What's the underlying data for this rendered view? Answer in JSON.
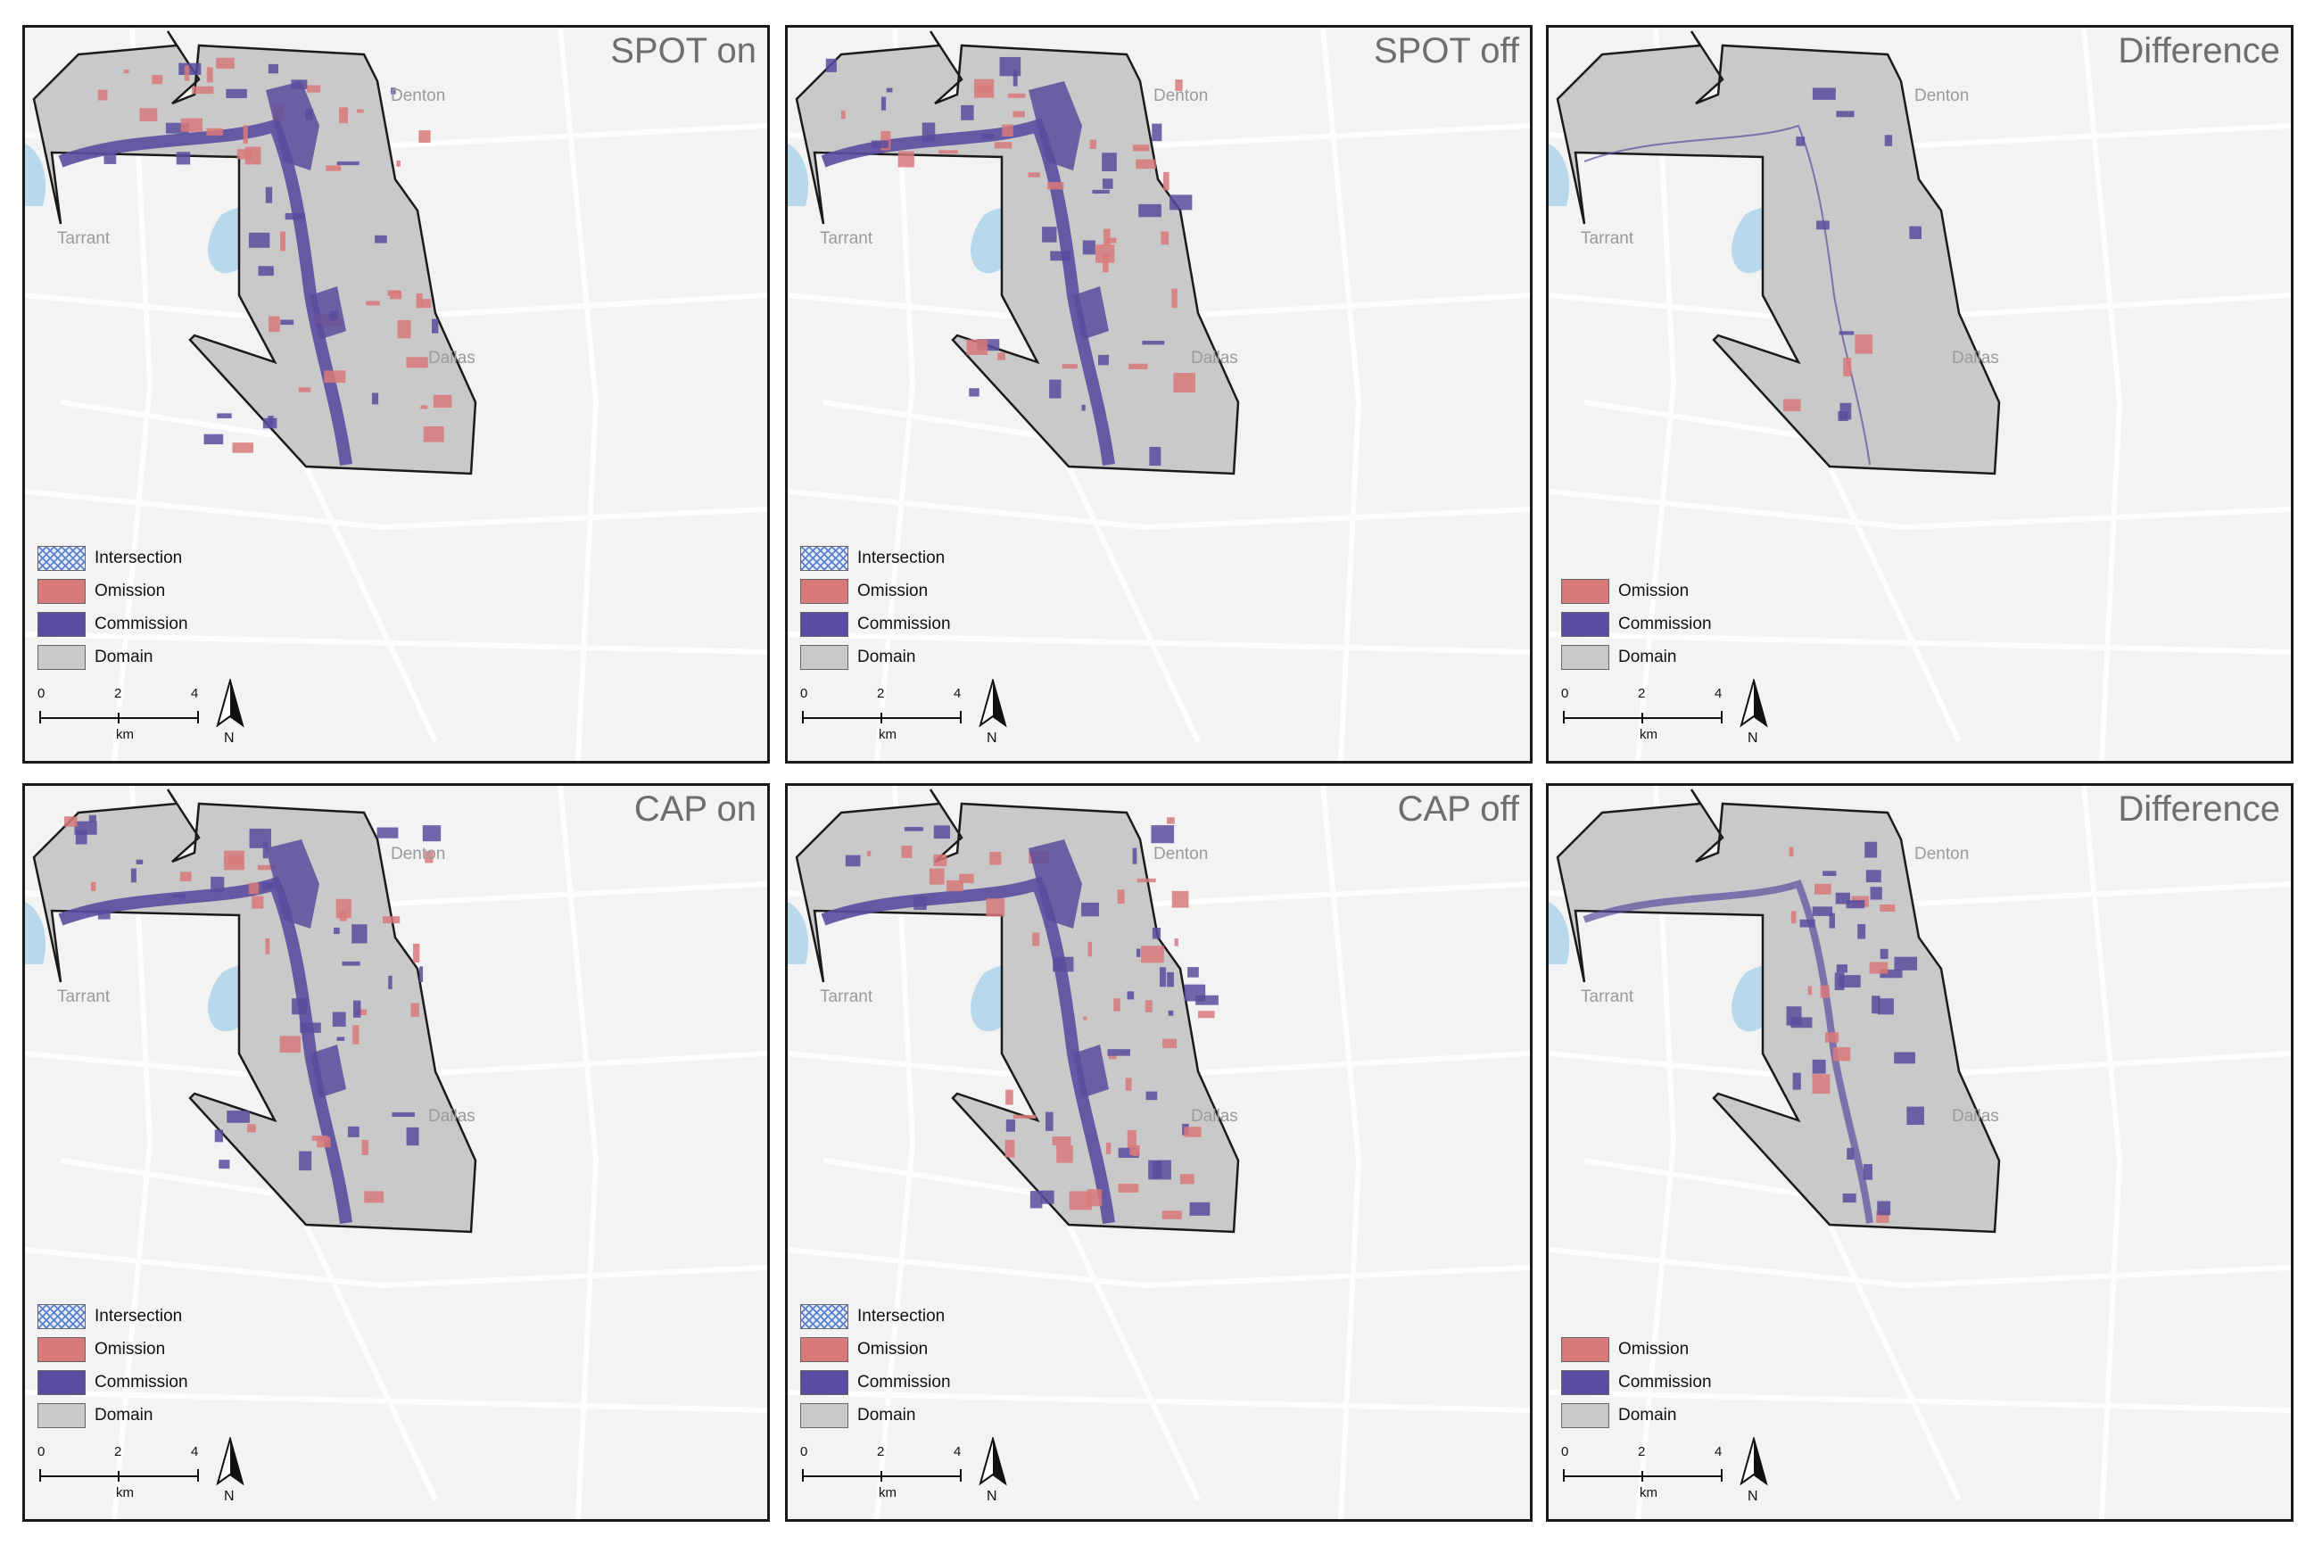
{
  "legend": {
    "intersection": "Intersection",
    "omission": "Omission",
    "commission": "Commission",
    "domain": "Domain"
  },
  "places": {
    "denton": "Denton",
    "tarrant": "Tarrant",
    "dallas": "Dallas"
  },
  "scale": {
    "t0": "0",
    "t2": "2",
    "t4": "4",
    "unit": "km"
  },
  "north_label": "N",
  "panels": [
    {
      "title": "SPOT on",
      "has_intersection": true
    },
    {
      "title": "SPOT off",
      "has_intersection": true
    },
    {
      "title": "Difference",
      "has_intersection": false
    },
    {
      "title": "CAP on",
      "has_intersection": true
    },
    {
      "title": "CAP off",
      "has_intersection": true
    },
    {
      "title": "Difference",
      "has_intersection": false
    }
  ],
  "colors": {
    "omission": "#d8797a",
    "commission": "#5a4c9e",
    "domain": "#c9c9c9",
    "intersection": "#5b7fd0",
    "basemap": "#f3f3f4",
    "lake": "#b8d8ec"
  }
}
